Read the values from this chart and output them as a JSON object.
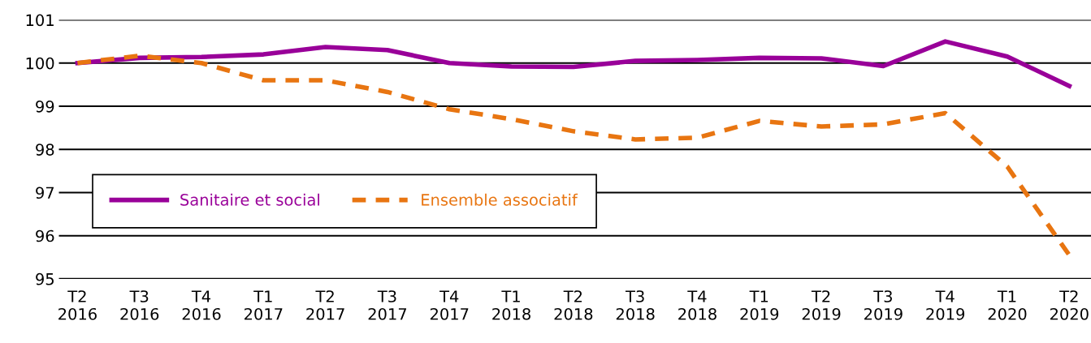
{
  "chart_data": {
    "type": "line",
    "categories": [
      "T2\n2016",
      "T3\n2016",
      "T4\n2016",
      "T1\n2017",
      "T2\n2017",
      "T3\n2017",
      "T4\n2017",
      "T1\n2018",
      "T2\n2018",
      "T3\n2018",
      "T4\n2018",
      "T1\n2019",
      "T2\n2019",
      "T3\n2019",
      "T4\n2019",
      "T1\n2020",
      "T2\n2020"
    ],
    "series": [
      {
        "name": "Sanitaire et social",
        "color": "#990099",
        "line_style": "solid",
        "values": [
          100.0,
          100.12,
          100.14,
          100.2,
          100.37,
          100.3,
          100.0,
          99.92,
          99.91,
          100.05,
          100.07,
          100.12,
          100.11,
          99.93,
          100.5,
          100.15,
          99.47
        ]
      },
      {
        "name": "Ensemble associatif",
        "color": "#e87511",
        "line_style": "dashed",
        "values": [
          100.0,
          100.17,
          100.0,
          99.6,
          99.6,
          99.33,
          98.93,
          98.7,
          98.42,
          98.23,
          98.27,
          98.66,
          98.53,
          98.58,
          98.84,
          97.6,
          95.55
        ]
      }
    ],
    "ylim": [
      95,
      101
    ],
    "yticks": [
      95,
      96,
      97,
      98,
      99,
      100,
      101
    ],
    "grid": "y",
    "legend": "center left",
    "marker": "none"
  }
}
